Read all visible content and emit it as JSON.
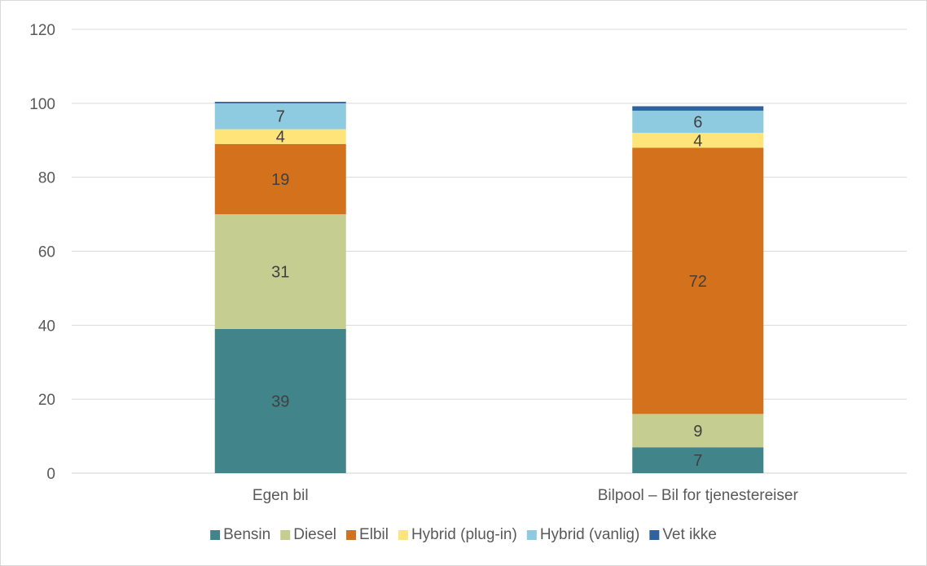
{
  "chart_data": {
    "type": "bar",
    "stacked": true,
    "categories": [
      "Egen bil",
      "Bilpool – Bil for tjenestereiser"
    ],
    "series": [
      {
        "name": "Bensin",
        "values": [
          39,
          7
        ],
        "color": "#418489"
      },
      {
        "name": "Diesel",
        "values": [
          31,
          9
        ],
        "color": "#c6cd90"
      },
      {
        "name": "Elbil",
        "values": [
          19,
          72
        ],
        "color": "#d4711d"
      },
      {
        "name": "Hybrid (plug-in)",
        "values": [
          4,
          4
        ],
        "color": "#ffe47a"
      },
      {
        "name": "Hybrid (vanlig)",
        "values": [
          7,
          6
        ],
        "color": "#8ecae0"
      },
      {
        "name": "Vet ikke",
        "values": [
          0.4,
          1.2
        ],
        "color": "#2e62a0"
      }
    ],
    "data_labels": [
      [
        "39",
        "7"
      ],
      [
        "31",
        "9"
      ],
      [
        "19",
        "72"
      ],
      [
        "4",
        "4"
      ],
      [
        "7",
        "6"
      ],
      [
        "",
        ""
      ]
    ],
    "title": "",
    "xlabel": "",
    "ylabel": "",
    "ylim": [
      0,
      120
    ],
    "yticks": [
      "0",
      "20",
      "40",
      "60",
      "80",
      "100",
      "120"
    ],
    "grid": true,
    "legend_position": "bottom"
  }
}
